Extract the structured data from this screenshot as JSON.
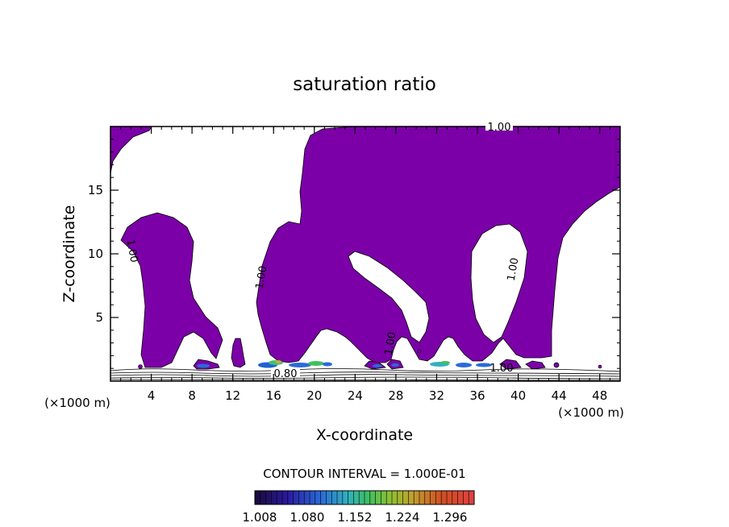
{
  "chart_data": {
    "type": "contour",
    "title": "saturation ratio",
    "xlabel": "X-coordinate",
    "ylabel": "Z-coordinate",
    "x_unit_left": "(×1000 m)",
    "x_unit_right": "(×1000 m)",
    "xlim": [
      0,
      50
    ],
    "ylim": [
      0,
      20
    ],
    "x_ticks": [
      "4",
      "8",
      "12",
      "16",
      "20",
      "24",
      "28",
      "32",
      "36",
      "40",
      "44",
      "48"
    ],
    "x_tick_values": [
      4,
      8,
      12,
      16,
      20,
      24,
      28,
      32,
      36,
      40,
      44,
      48
    ],
    "y_ticks": [
      "5",
      "10",
      "15"
    ],
    "y_tick_values": [
      5,
      10,
      15
    ],
    "contour_labels": [
      "1.00",
      "1.00",
      "1.00",
      "1.00",
      "1.00",
      "1.00",
      "0.80"
    ],
    "contour_interval_text": "CONTOUR INTERVAL = 1.000E-01",
    "colorbar_labels": [
      "1.008",
      "1.080",
      "1.152",
      "1.224",
      "1.296"
    ],
    "fill_color": "#7b00a8"
  }
}
